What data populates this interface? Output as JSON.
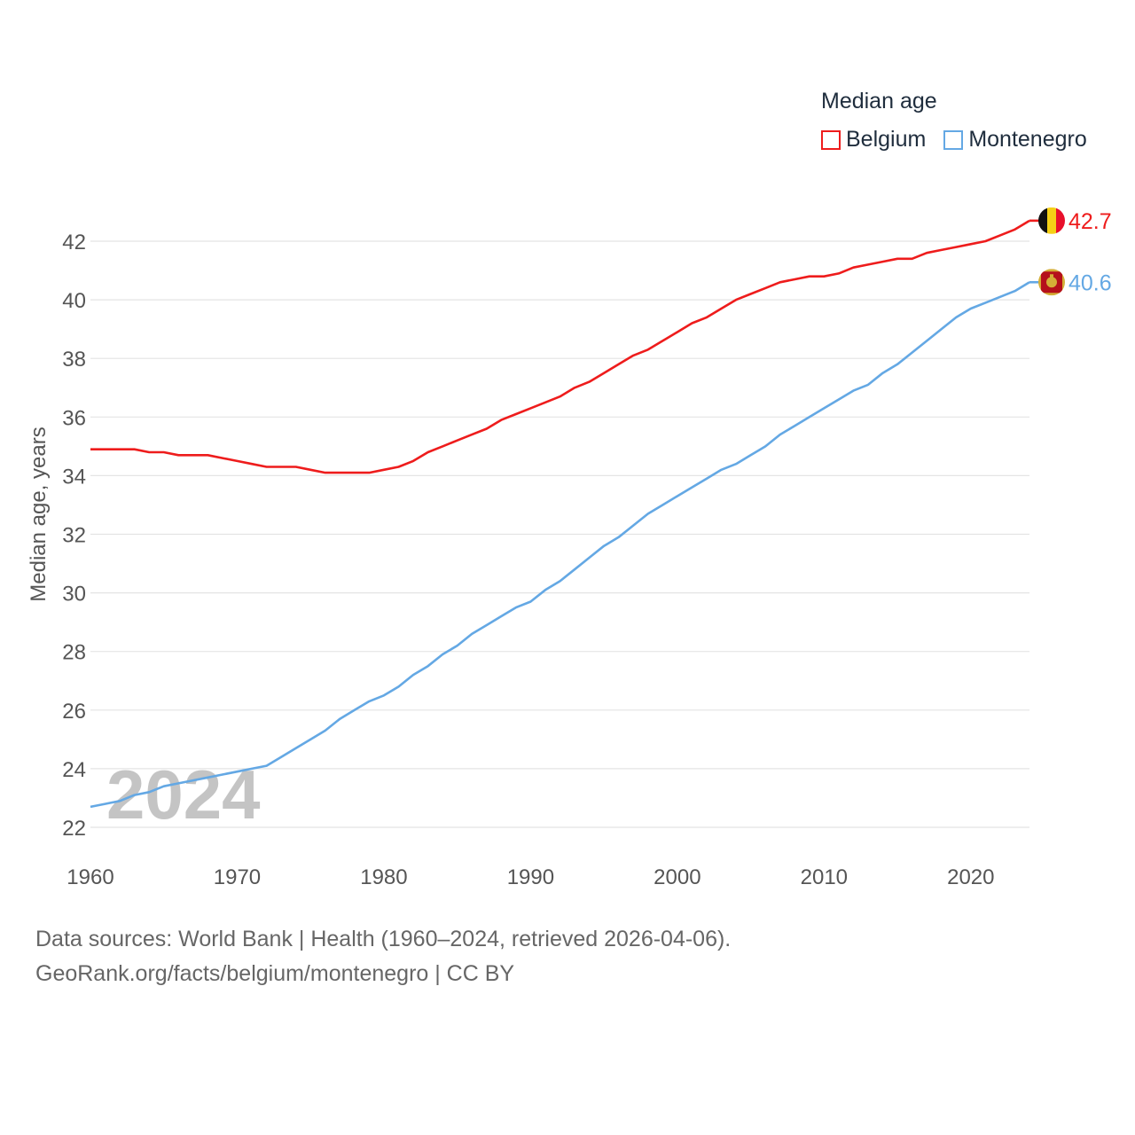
{
  "legend": {
    "title": "Median age",
    "items": [
      {
        "label": "Belgium",
        "color": "#ee1c1c"
      },
      {
        "label": "Montenegro",
        "color": "#64a8e4"
      }
    ]
  },
  "year_watermark": "2024",
  "footer": {
    "line1": "Data sources: World Bank | Health (1960–2024, retrieved 2026-04-06).",
    "line2": "GeoRank.org/facts/belgium/montenegro | CC BY"
  },
  "chart_data": {
    "type": "line",
    "title": "Median age",
    "xlabel": "",
    "ylabel": "Median age, years",
    "xlim": [
      1960,
      2024
    ],
    "ylim": [
      22,
      43
    ],
    "xticks": [
      1960,
      1970,
      1980,
      1990,
      2000,
      2010,
      2020
    ],
    "yticks": [
      22,
      24,
      26,
      28,
      30,
      32,
      34,
      36,
      38,
      40,
      42
    ],
    "grid": true,
    "legend_position": "top-right",
    "x": [
      1960,
      1961,
      1962,
      1963,
      1964,
      1965,
      1966,
      1967,
      1968,
      1969,
      1970,
      1971,
      1972,
      1973,
      1974,
      1975,
      1976,
      1977,
      1978,
      1979,
      1980,
      1981,
      1982,
      1983,
      1984,
      1985,
      1986,
      1987,
      1988,
      1989,
      1990,
      1991,
      1992,
      1993,
      1994,
      1995,
      1996,
      1997,
      1998,
      1999,
      2000,
      2001,
      2002,
      2003,
      2004,
      2005,
      2006,
      2007,
      2008,
      2009,
      2010,
      2011,
      2012,
      2013,
      2014,
      2015,
      2016,
      2017,
      2018,
      2019,
      2020,
      2021,
      2022,
      2023,
      2024
    ],
    "series": [
      {
        "name": "Belgium",
        "color": "#ee1c1c",
        "end_label": "42.7",
        "values": [
          34.9,
          34.9,
          34.9,
          34.9,
          34.8,
          34.8,
          34.7,
          34.7,
          34.7,
          34.6,
          34.5,
          34.4,
          34.3,
          34.3,
          34.3,
          34.2,
          34.1,
          34.1,
          34.1,
          34.1,
          34.2,
          34.3,
          34.5,
          34.8,
          35.0,
          35.2,
          35.4,
          35.6,
          35.9,
          36.1,
          36.3,
          36.5,
          36.7,
          37.0,
          37.2,
          37.5,
          37.8,
          38.1,
          38.3,
          38.6,
          38.9,
          39.2,
          39.4,
          39.7,
          40.0,
          40.2,
          40.4,
          40.6,
          40.7,
          40.8,
          40.8,
          40.9,
          41.1,
          41.2,
          41.3,
          41.4,
          41.4,
          41.6,
          41.7,
          41.8,
          41.9,
          42.0,
          42.2,
          42.4,
          42.7
        ]
      },
      {
        "name": "Montenegro",
        "color": "#64a8e4",
        "end_label": "40.6",
        "values": [
          22.7,
          22.8,
          22.9,
          23.1,
          23.2,
          23.4,
          23.5,
          23.6,
          23.7,
          23.8,
          23.9,
          24.0,
          24.1,
          24.4,
          24.7,
          25.0,
          25.3,
          25.7,
          26.0,
          26.3,
          26.5,
          26.8,
          27.2,
          27.5,
          27.9,
          28.2,
          28.6,
          28.9,
          29.2,
          29.5,
          29.7,
          30.1,
          30.4,
          30.8,
          31.2,
          31.6,
          31.9,
          32.3,
          32.7,
          33.0,
          33.3,
          33.6,
          33.9,
          34.2,
          34.4,
          34.7,
          35.0,
          35.4,
          35.7,
          36.0,
          36.3,
          36.6,
          36.9,
          37.1,
          37.5,
          37.8,
          38.2,
          38.6,
          39.0,
          39.4,
          39.7,
          39.9,
          40.1,
          40.3,
          40.6
        ]
      }
    ]
  }
}
